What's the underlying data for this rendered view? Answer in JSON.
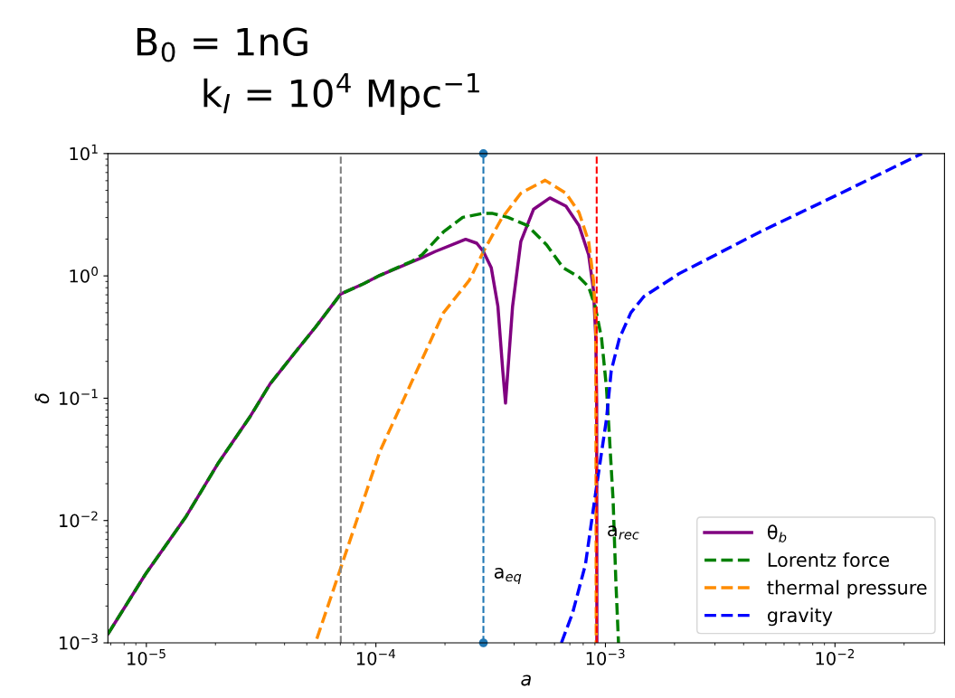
{
  "chart_data": {
    "type": "line",
    "title": "B$_{0}$ = 1nG",
    "subtitle": "k$_{I}$ = 10$^{4}$ Mpc$^{−1}$",
    "xlabel": "a",
    "ylabel": "δ",
    "log": "xy",
    "grid": false,
    "legend": "bottom right",
    "xlim": [
      6.8e-06,
      0.03
    ],
    "ylim": [
      0.001,
      10
    ],
    "xticks": [
      {
        "value": 1e-05,
        "label": "10$^{−5}$"
      },
      {
        "value": 0.0001,
        "label": "10$^{−4}$"
      },
      {
        "value": 0.001,
        "label": "10$^{−3}$"
      },
      {
        "value": 0.01,
        "label": "10$^{−2}$"
      }
    ],
    "yticks": [
      {
        "value": 0.001,
        "label": "10$^{−3}$"
      },
      {
        "value": 0.01,
        "label": "10$^{−2}$"
      },
      {
        "value": 0.1,
        "label": "10$^{−1}$"
      },
      {
        "value": 1,
        "label": "10$^{0}$"
      },
      {
        "value": 10,
        "label": "10$^{1}$"
      }
    ],
    "series": [
      {
        "name": "θ$_{b}$",
        "color": "#800080",
        "line_style": "solid",
        "x": [
          6.8e-06,
          9.9e-06,
          1.49e-05,
          2.06e-05,
          2.84e-05,
          3.46e-05,
          4.48e-05,
          5.45e-05,
          7.03e-05,
          8.85e-05,
          0.000104,
          0.000159,
          0.000181,
          0.000246,
          0.000275,
          0.000294,
          0.000318,
          0.00034,
          0.000357,
          0.000367,
          0.000394,
          0.000428,
          0.000486,
          0.000573,
          0.000673,
          0.000767,
          0.000845,
          0.000887,
          0.000908,
          0.000916,
          0.000918
        ],
        "values": [
          0.00118,
          0.00363,
          0.0108,
          0.0296,
          0.0714,
          0.131,
          0.241,
          0.38,
          0.711,
          0.863,
          1.01,
          1.41,
          1.58,
          1.99,
          1.85,
          1.58,
          1.17,
          0.565,
          0.168,
          0.0912,
          0.565,
          1.91,
          3.5,
          4.34,
          3.72,
          2.58,
          1.49,
          0.766,
          0.308,
          0.0912,
          0.001
        ]
      },
      {
        "name": "Lorentz force",
        "color": "#008000",
        "line_style": "dashed",
        "x": [
          6.8e-06,
          9.9e-06,
          1.49e-05,
          2.06e-05,
          2.84e-05,
          3.46e-05,
          4.48e-05,
          5.45e-05,
          7.03e-05,
          8.85e-05,
          0.000104,
          0.000144,
          0.000159,
          0.000197,
          0.000239,
          0.00029,
          0.00032,
          0.000376,
          0.000457,
          0.000555,
          0.000653,
          0.000767,
          0.000845,
          0.000902,
          0.000962,
          0.00101,
          0.00104,
          0.00108,
          0.00111,
          0.00114
        ],
        "values": [
          0.00118,
          0.00363,
          0.0108,
          0.0296,
          0.0714,
          0.131,
          0.241,
          0.38,
          0.711,
          0.863,
          1.01,
          1.32,
          1.49,
          2.29,
          3.01,
          3.23,
          3.25,
          3.01,
          2.58,
          1.79,
          1.17,
          0.977,
          0.813,
          0.565,
          0.308,
          0.123,
          0.0497,
          0.0147,
          0.00321,
          0.001
        ]
      },
      {
        "name": "thermal pressure",
        "color": "#ff8c00",
        "line_style": "dashed",
        "x": [
          5.53e-05,
          7.03e-05,
          0.000104,
          0.000144,
          0.000197,
          0.000255,
          0.000294,
          0.000352,
          0.000428,
          0.000546,
          0.000673,
          0.000767,
          0.000845,
          0.000887,
          0.000908,
          0.000912
        ],
        "values": [
          0.00108,
          0.0041,
          0.0366,
          0.139,
          0.5,
          0.918,
          1.58,
          2.92,
          4.74,
          6.05,
          4.74,
          3.3,
          1.91,
          0.918,
          0.392,
          0.001
        ]
      },
      {
        "name": "gravity",
        "color": "#0000ff",
        "line_style": "dashed",
        "x": [
          0.000643,
          0.000719,
          0.000818,
          0.000918,
          0.00101,
          0.00106,
          0.00115,
          0.00129,
          0.00147,
          0.00209,
          0.00472,
          0.0106,
          0.0239
        ],
        "values": [
          0.001,
          0.00175,
          0.00436,
          0.0199,
          0.0671,
          0.168,
          0.308,
          0.5,
          0.678,
          1.04,
          2.29,
          4.74,
          10
        ]
      },
      {
        "type": "scatter",
        "color": "#1f77b4",
        "marker": "circle",
        "x": [
          0.000294,
          0.000294
        ],
        "values": [
          0.001,
          10
        ]
      }
    ],
    "ref_lines": [
      {
        "axis": "x",
        "value": 7.03e-05,
        "color": "#808080",
        "line_style": "dashed"
      },
      {
        "axis": "x",
        "value": 0.000294,
        "color": "#1f77b4",
        "line_style": "dashed",
        "label": "a$_{eq}$"
      },
      {
        "axis": "x",
        "value": 0.000916,
        "color": "#ff0000",
        "line_style": "dashed",
        "label": "a$_{rec}$"
      }
    ]
  }
}
